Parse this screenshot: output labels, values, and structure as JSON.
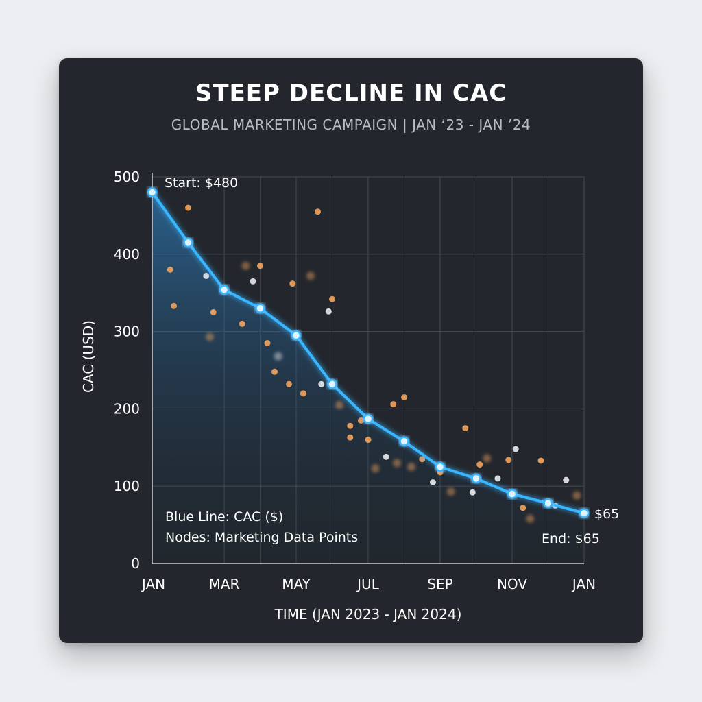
{
  "chart_data": {
    "type": "line",
    "title": "STEEP DECLINE IN CAC",
    "subtitle": "GLOBAL MARKETING CAMPAIGN | JAN ‘23 - JAN ’24",
    "xlabel": "TIME (JAN 2023 - JAN 2024)",
    "ylabel": "CAC (USD)",
    "ylim": [
      0,
      500
    ],
    "yticks": [
      0,
      100,
      200,
      300,
      400,
      500
    ],
    "xlim": [
      0,
      12
    ],
    "xtick_positions": [
      0,
      2,
      4,
      6,
      8,
      10,
      12
    ],
    "xtick_labels": [
      "JAN",
      "MAR",
      "MAY",
      "JUL",
      "SEP",
      "NOV",
      "JAN"
    ],
    "grid": true,
    "series": [
      {
        "name": "CAC ($)",
        "color": "#38b6ff",
        "x": [
          0,
          1,
          2,
          3,
          4,
          5,
          6,
          7,
          8,
          9,
          10,
          11,
          12
        ],
        "values": [
          480,
          415,
          354,
          330,
          295,
          232,
          187,
          158,
          125,
          110,
          90,
          78,
          65
        ]
      }
    ],
    "scatter_points": {
      "colors": {
        "orange": "#f2a45e",
        "white": "#e8eaee"
      },
      "x": [
        0.5,
        0.6,
        1.0,
        1.6,
        1.7,
        1.5,
        2.5,
        2.6,
        2.8,
        3.0,
        3.2,
        3.5,
        3.8,
        3.9,
        4.2,
        4.4,
        4.6,
        4.9,
        5.0,
        5.2,
        5.5,
        5.8,
        6.0,
        6.2,
        6.5,
        6.7,
        7.0,
        7.2,
        7.5,
        7.8,
        8.0,
        8.3,
        8.7,
        8.9,
        9.1,
        9.3,
        9.6,
        9.9,
        10.3,
        10.5,
        10.8,
        11.0,
        11.5,
        11.8,
        3.4,
        4.7,
        5.5,
        6.8,
        10.1,
        11.2
      ],
      "y": [
        380,
        333,
        460,
        293,
        325,
        372,
        310,
        385,
        365,
        385,
        285,
        268,
        232,
        362,
        220,
        372,
        455,
        326,
        342,
        205,
        178,
        185,
        160,
        123,
        138,
        206,
        215,
        125,
        135,
        105,
        118,
        93,
        175,
        92,
        128,
        136,
        110,
        134,
        72,
        58,
        133,
        78,
        108,
        88,
        248,
        232,
        163,
        130,
        148,
        75
      ],
      "color": [
        "orange",
        "orange",
        "orange",
        "orange",
        "orange",
        "white",
        "orange",
        "orange",
        "white",
        "orange",
        "orange",
        "white",
        "orange",
        "orange",
        "orange",
        "orange",
        "orange",
        "white",
        "orange",
        "orange",
        "orange",
        "orange",
        "orange",
        "orange",
        "white",
        "orange",
        "orange",
        "orange",
        "orange",
        "white",
        "orange",
        "orange",
        "orange",
        "white",
        "orange",
        "orange",
        "white",
        "orange",
        "orange",
        "orange",
        "orange",
        "white",
        "white",
        "orange",
        "orange",
        "white",
        "orange",
        "orange",
        "white",
        "white"
      ]
    },
    "annotations": {
      "start": "Start: $480",
      "end": "End: $65",
      "end_value": "$65",
      "legend_line1": "Blue Line: CAC ($)",
      "legend_line2": "Nodes: Marketing Data Points"
    }
  }
}
